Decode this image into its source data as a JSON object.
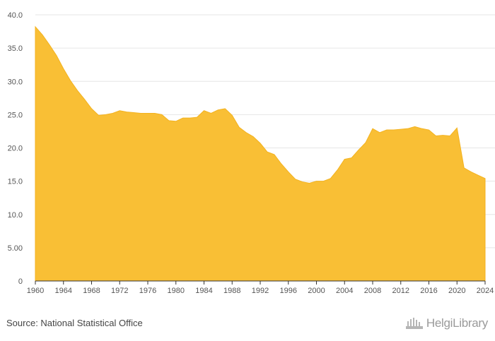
{
  "source": {
    "text": "Source: National Statistical Office"
  },
  "brand": {
    "text": "HelgiLibrary",
    "icon": "building-icon"
  },
  "colors": {
    "area": "#f9bf35",
    "area_stroke": "#f3b21f",
    "grid": "#e6e6e6",
    "axis": "#333333"
  },
  "chart_data": {
    "type": "area",
    "title": "",
    "xlabel": "",
    "ylabel": "",
    "xlim": [
      1960,
      2024
    ],
    "ylim": [
      0,
      40
    ],
    "grid": true,
    "legend": "none",
    "x_ticks": [
      "1960",
      "1964",
      "1968",
      "1972",
      "1976",
      "1980",
      "1984",
      "1988",
      "1992",
      "1996",
      "2000",
      "2004",
      "2008",
      "2012",
      "2016",
      "2020",
      "2024"
    ],
    "y_ticks": [
      "0",
      "5.00",
      "10.0",
      "15.0",
      "20.0",
      "25.0",
      "30.0",
      "35.0",
      "40.0"
    ],
    "series": [
      {
        "x": [
          1960,
          1961,
          1962,
          1963,
          1964,
          1965,
          1966,
          1967,
          1968,
          1969,
          1970,
          1971,
          1972,
          1973,
          1974,
          1975,
          1976,
          1977,
          1978,
          1979,
          1980,
          1981,
          1982,
          1983,
          1984,
          1985,
          1986,
          1987,
          1988,
          1989,
          1990,
          1991,
          1992,
          1993,
          1994,
          1995,
          1996,
          1997,
          1998,
          1999,
          2000,
          2001,
          2002,
          2003,
          2004,
          2005,
          2006,
          2007,
          2008,
          2009,
          2010,
          2011,
          2012,
          2013,
          2014,
          2015,
          2016,
          2017,
          2018,
          2019,
          2020,
          2021,
          2022,
          2023,
          2024
        ],
        "values": [
          38.2,
          37.0,
          35.5,
          33.9,
          31.9,
          30.1,
          28.6,
          27.3,
          25.9,
          24.9,
          25.0,
          25.2,
          25.6,
          25.4,
          25.3,
          25.2,
          25.2,
          25.2,
          25.0,
          24.1,
          24.0,
          24.5,
          24.5,
          24.6,
          25.6,
          25.2,
          25.7,
          25.9,
          24.9,
          23.1,
          22.3,
          21.7,
          20.7,
          19.4,
          19.0,
          17.6,
          16.4,
          15.3,
          14.9,
          14.7,
          15.0,
          15.0,
          15.4,
          16.7,
          18.3,
          18.5,
          19.7,
          20.8,
          22.9,
          22.3,
          22.7,
          22.7,
          22.8,
          22.9,
          23.2,
          22.9,
          22.7,
          21.8,
          21.9,
          21.8,
          23.0,
          17.0,
          16.4,
          15.9,
          15.4
        ]
      }
    ]
  }
}
